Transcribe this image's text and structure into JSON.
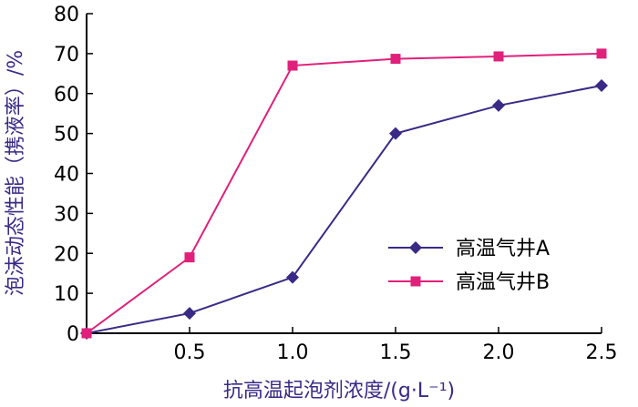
{
  "chart_data": {
    "type": "line",
    "title": "",
    "xlabel": "抗高温起泡剂浓度/(g·L⁻¹)",
    "ylabel": "泡沫动态性能（携液率）/%",
    "x": [
      0,
      0.5,
      1.0,
      1.5,
      2.0,
      2.5
    ],
    "x_tick_labels": [
      "0.5",
      "1.0",
      "1.5",
      "2.0",
      "2.5"
    ],
    "x_tick_values": [
      0.5,
      1.0,
      1.5,
      2.0,
      2.5
    ],
    "y_ticks": [
      0,
      10,
      20,
      30,
      40,
      50,
      60,
      70,
      80
    ],
    "xlim": [
      0,
      2.5
    ],
    "ylim": [
      0,
      80
    ],
    "grid": false,
    "legend_position": "bottom-right",
    "series": [
      {
        "name": "高温气井A",
        "values": [
          0,
          5,
          14,
          50,
          57,
          62
        ],
        "color": "#3a2a86",
        "marker": "diamond"
      },
      {
        "name": "高温气井B",
        "values": [
          0,
          19,
          67,
          68.7,
          69.3,
          70
        ],
        "color": "#e0207a",
        "marker": "square"
      }
    ]
  }
}
